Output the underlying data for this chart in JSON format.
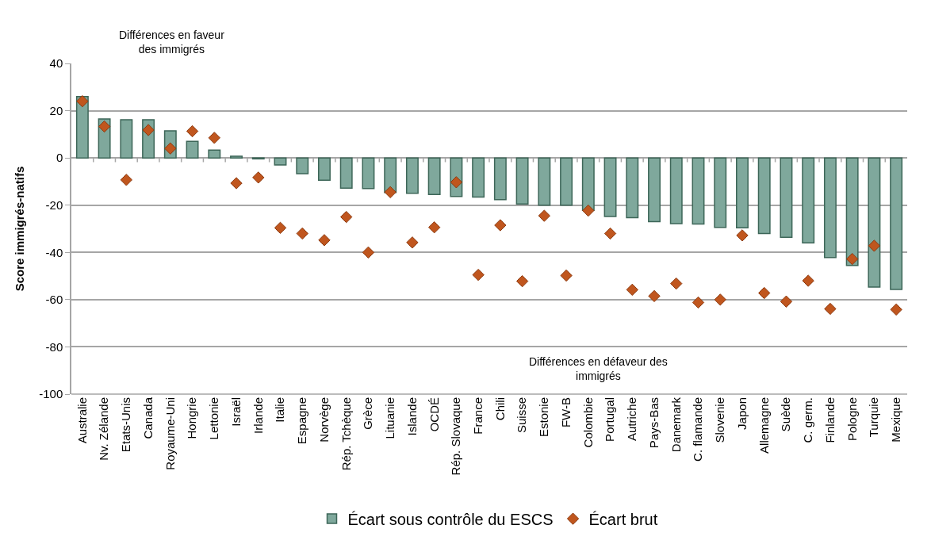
{
  "chart_data": {
    "type": "bar",
    "ylabel": "Score immigrés-natifs",
    "categories": [
      "Australie",
      "Nv. Zélande",
      "Etats-Unis",
      "Canada",
      "Royaume-Uni",
      "Hongrie",
      "Lettonie",
      "Israël",
      "Irlande",
      "Italie",
      "Espagne",
      "Norvège",
      "Rép. Tchèque",
      "Grèce",
      "Lituanie",
      "Islande",
      "OCDÉ",
      "Rép. Slovaque",
      "France",
      "Chili",
      "Suisse",
      "Estonie",
      "FW-B",
      "Colombie",
      "Portugal",
      "Autriche",
      "Pays-Bas",
      "Danemark",
      "C. flamande",
      "Slovenie",
      "Japon",
      "Allemagne",
      "Suède",
      "C. germ.",
      "Finlande",
      "Pologne",
      "Turquie",
      "Mexique"
    ],
    "series": [
      {
        "name": "Écart sous contrôle du ESCS",
        "color": "#7fa89c",
        "values": [
          26,
          16.5,
          16.2,
          16.2,
          11.5,
          7,
          3.3,
          0.7,
          -0.4,
          -3,
          -6.7,
          -9.4,
          -12.8,
          -13,
          -14.6,
          -15,
          -15.5,
          -16.3,
          -16.6,
          -17.7,
          -19.5,
          -20,
          -20,
          -22.2,
          -24.8,
          -25.3,
          -27,
          -27.8,
          -28,
          -29.4,
          -29.6,
          -32,
          -33.6,
          -36,
          -42.2,
          -45.5,
          -54.7,
          -55.7
        ]
      },
      {
        "name": "Écart brut",
        "type": "scatter",
        "marker": "diamond",
        "color": "#c0561e",
        "values": [
          24,
          13.3,
          -9.3,
          11.8,
          4,
          11.3,
          8.5,
          -10.7,
          -8.3,
          -29.6,
          -32,
          -34.8,
          -25,
          -40,
          -14.5,
          -35.8,
          -29.4,
          -10.3,
          -49.5,
          -28.5,
          -52.2,
          -24.5,
          -49.8,
          -22.3,
          -32,
          -55.8,
          -58.5,
          -53.2,
          -61.2,
          -60,
          -32.8,
          -57.2,
          -60.8,
          -52,
          -63.9,
          -42.8,
          -37.2,
          -64.2
        ]
      }
    ],
    "ylim": [
      -100,
      40
    ],
    "yticks": [
      -100,
      -80,
      -60,
      -40,
      -20,
      0,
      20,
      40
    ],
    "grid": "y",
    "legend": "bottom",
    "annotations": [
      "Différences en faveur des immigrés",
      "Différences en défaveur des immigrés"
    ]
  }
}
